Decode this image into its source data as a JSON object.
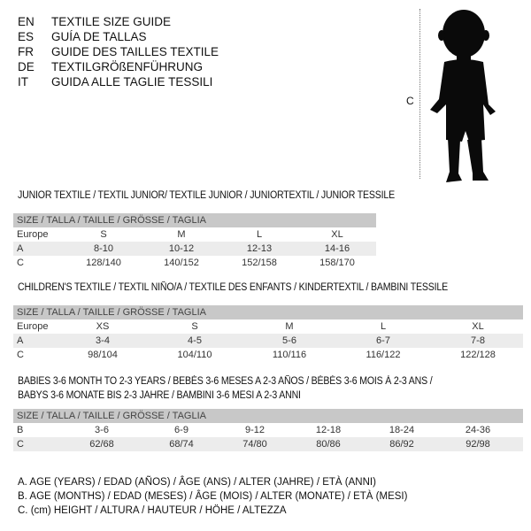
{
  "guide_titles": [
    {
      "code": "EN",
      "text": "TEXTILE SIZE GUIDE"
    },
    {
      "code": "ES",
      "text": "GUÍA DE TALLAS"
    },
    {
      "code": "FR",
      "text": "GUIDE DES TAILLES TEXTILE"
    },
    {
      "code": "DE",
      "text": "TEXTILGRÖßENFÜHRUNG"
    },
    {
      "code": "IT",
      "text": "GUIDA ALLE TAGLIE TESSILI"
    }
  ],
  "figure": {
    "measure_label": "C",
    "icon": "child-silhouette"
  },
  "size_header": "SIZE / TALLA / TAILLE / GRÖSSE / TAGLIA",
  "tables": [
    {
      "title": "JUNIOR TEXTILE / TEXTIL JUNIOR/ TEXTILE JUNIOR / JUNIORTEXTIL / JUNIOR TESSILE",
      "rows": [
        {
          "label": "Europe",
          "cells": [
            "S",
            "M",
            "L",
            "XL"
          ]
        },
        {
          "label": "A",
          "cells": [
            "8-10",
            "10-12",
            "12-13",
            "14-16"
          ]
        },
        {
          "label": "C",
          "cells": [
            "128/140",
            "140/152",
            "152/158",
            "158/170"
          ]
        }
      ]
    },
    {
      "title": "CHILDREN'S TEXTILE / TEXTIL NIÑO/A / TEXTILE DES ENFANTS / KINDERTEXTIL / BAMBINI TESSILE",
      "rows": [
        {
          "label": "Europe",
          "cells": [
            "XS",
            "S",
            "M",
            "L",
            "XL"
          ]
        },
        {
          "label": "A",
          "cells": [
            "3-4",
            "4-5",
            "5-6",
            "6-7",
            "7-8"
          ]
        },
        {
          "label": "C",
          "cells": [
            "98/104",
            "104/110",
            "110/116",
            "116/122",
            "122/128"
          ]
        }
      ]
    },
    {
      "title": "BABIES 3-6 MONTH TO 2-3 YEARS / BEBÉS 3-6 MESES A 2-3 AÑOS / BÉBÉS 3-6 MOIS À 2-3 ANS /",
      "title2": "BABYS 3-6 MONATE BIS 2-3 JAHRE / BAMBINI 3-6 MESI A 2-3 ANNI",
      "rows": [
        {
          "label": "B",
          "cells": [
            "3-6",
            "6-9",
            "9-12",
            "12-18",
            "18-24",
            "24-36"
          ]
        },
        {
          "label": "C",
          "cells": [
            "62/68",
            "68/74",
            "74/80",
            "80/86",
            "86/92",
            "92/98"
          ]
        }
      ]
    }
  ],
  "legend": [
    "A. AGE (YEARS) / EDAD (AÑOS) / ÂGE (ANS) / ALTER (JAHRE) / ETÀ (ANNI)",
    "B. AGE (MONTHS) / EDAD (MESES) / ÂGE (MOIS) / ALTER (MONATE) / ETÀ (MESI)",
    "C. (cm) HEIGHT / ALTURA / HAUTEUR / HÖHE / ALTEZZA"
  ]
}
